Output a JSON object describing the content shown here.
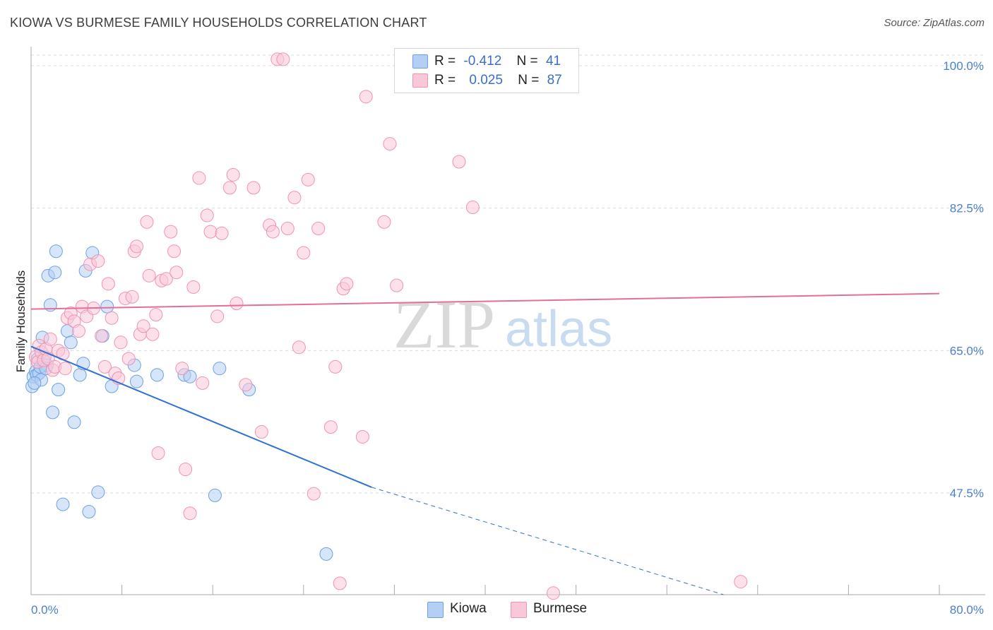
{
  "header": {
    "title": "KIOWA VS BURMESE FAMILY HOUSEHOLDS CORRELATION CHART",
    "source": "Source: ZipAtlas.com"
  },
  "legend": {
    "kiowa": {
      "r_label": "R =",
      "r_value": "-0.412",
      "n_label": "N =",
      "n_value": "41"
    },
    "burmese": {
      "r_label": "R =",
      "r_value": "0.025",
      "n_label": "N =",
      "n_value": "87"
    }
  },
  "colors": {
    "kiowa": "#6ea0e4",
    "kiowa_fill": "#b4cff3",
    "kiowa_line": "#2f72d3",
    "burmese": "#ef93b1",
    "burmese_fill": "#f9c8d8",
    "burmese_line": "#e46e96",
    "tick_text": "#4a7fd0",
    "grid": "#dcdcdc"
  },
  "chart_data": {
    "type": "scatter",
    "title": "KIOWA VS BURMESE FAMILY HOUSEHOLDS CORRELATION CHART",
    "xlabel": "",
    "ylabel": "Family Households",
    "xlim": [
      0,
      80
    ],
    "ylim": [
      35,
      102
    ],
    "x_tick_labels": [
      "0.0%",
      "80.0%"
    ],
    "y_ticks": [
      47.5,
      65.0,
      82.5,
      100.0
    ],
    "y_tick_labels": [
      "47.5%",
      "65.0%",
      "82.5%",
      "100.0%"
    ],
    "grid": true,
    "legend_position": "top-center",
    "watermark": "ZIPatlas",
    "series": [
      {
        "name": "Kiowa",
        "r": -0.412,
        "n": 41,
        "trend": {
          "x0": 0,
          "y0": 65.5,
          "x1": 30,
          "y1": 48.2,
          "dashed_to_x": 61,
          "dashed_to_y": 35
        },
        "points": [
          [
            0.1,
            60.6
          ],
          [
            0.2,
            61.8
          ],
          [
            0.4,
            62.4
          ],
          [
            0.5,
            62.0
          ],
          [
            0.6,
            64.0
          ],
          [
            0.7,
            62.2
          ],
          [
            0.9,
            61.4
          ],
          [
            1.0,
            66.6
          ],
          [
            1.2,
            64.2
          ],
          [
            1.4,
            63.2
          ],
          [
            1.5,
            74.2
          ],
          [
            1.7,
            70.6
          ],
          [
            1.9,
            57.4
          ],
          [
            2.1,
            74.6
          ],
          [
            2.2,
            77.2
          ],
          [
            2.4,
            60.2
          ],
          [
            2.8,
            46.1
          ],
          [
            3.2,
            67.4
          ],
          [
            3.5,
            66.0
          ],
          [
            3.8,
            56.2
          ],
          [
            4.3,
            62.0
          ],
          [
            4.6,
            63.4
          ],
          [
            4.8,
            74.8
          ],
          [
            5.1,
            45.2
          ],
          [
            5.4,
            77.0
          ],
          [
            5.9,
            47.6
          ],
          [
            6.3,
            66.8
          ],
          [
            6.7,
            70.4
          ],
          [
            7.1,
            60.6
          ],
          [
            9.1,
            63.2
          ],
          [
            9.3,
            61.2
          ],
          [
            11.1,
            62.0
          ],
          [
            13.5,
            62.0
          ],
          [
            14.0,
            61.8
          ],
          [
            16.2,
            47.2
          ],
          [
            16.6,
            62.8
          ],
          [
            19.2,
            60.2
          ],
          [
            26.0,
            40.0
          ],
          [
            0.3,
            61.0
          ],
          [
            0.8,
            63.0
          ],
          [
            1.3,
            62.8
          ]
        ]
      },
      {
        "name": "Burmese",
        "r": 0.025,
        "n": 87,
        "trend": {
          "x0": 0,
          "y0": 70.1,
          "x1": 80,
          "y1": 72.0
        },
        "points": [
          [
            0.4,
            64.2
          ],
          [
            0.6,
            63.6
          ],
          [
            0.7,
            65.6
          ],
          [
            0.9,
            64.8
          ],
          [
            1.1,
            63.8
          ],
          [
            1.3,
            65.2
          ],
          [
            1.5,
            64.0
          ],
          [
            1.7,
            66.4
          ],
          [
            1.9,
            62.6
          ],
          [
            2.1,
            63.0
          ],
          [
            2.4,
            65.0
          ],
          [
            2.8,
            64.6
          ],
          [
            3.0,
            62.8
          ],
          [
            3.2,
            69.0
          ],
          [
            3.5,
            69.6
          ],
          [
            3.8,
            68.6
          ],
          [
            4.2,
            67.4
          ],
          [
            4.5,
            70.4
          ],
          [
            4.9,
            69.2
          ],
          [
            5.2,
            75.6
          ],
          [
            5.5,
            70.2
          ],
          [
            5.9,
            76.0
          ],
          [
            6.2,
            66.8
          ],
          [
            6.5,
            63.0
          ],
          [
            6.8,
            73.2
          ],
          [
            7.1,
            69.0
          ],
          [
            7.4,
            62.2
          ],
          [
            7.7,
            61.6
          ],
          [
            7.9,
            66.0
          ],
          [
            8.3,
            71.4
          ],
          [
            8.6,
            64.0
          ],
          [
            8.9,
            71.6
          ],
          [
            9.1,
            77.2
          ],
          [
            9.3,
            77.8
          ],
          [
            9.6,
            67.0
          ],
          [
            9.9,
            68.0
          ],
          [
            10.2,
            80.8
          ],
          [
            10.4,
            74.2
          ],
          [
            10.7,
            67.0
          ],
          [
            11.0,
            69.4
          ],
          [
            11.2,
            52.4
          ],
          [
            11.5,
            73.6
          ],
          [
            11.9,
            73.8
          ],
          [
            12.3,
            79.6
          ],
          [
            12.6,
            77.2
          ],
          [
            12.8,
            74.6
          ],
          [
            13.3,
            62.8
          ],
          [
            13.6,
            50.4
          ],
          [
            14.0,
            45.0
          ],
          [
            14.3,
            72.8
          ],
          [
            14.8,
            86.2
          ],
          [
            15.1,
            61.0
          ],
          [
            15.5,
            81.6
          ],
          [
            15.8,
            79.6
          ],
          [
            16.4,
            69.2
          ],
          [
            16.8,
            79.4
          ],
          [
            17.5,
            85.0
          ],
          [
            17.8,
            86.6
          ],
          [
            18.1,
            70.8
          ],
          [
            18.9,
            60.8
          ],
          [
            19.6,
            85.0
          ],
          [
            20.3,
            55.0
          ],
          [
            21.0,
            80.4
          ],
          [
            21.3,
            79.6
          ],
          [
            21.7,
            100.8
          ],
          [
            22.2,
            100.8
          ],
          [
            22.6,
            80.0
          ],
          [
            23.2,
            83.8
          ],
          [
            23.6,
            65.4
          ],
          [
            24.0,
            77.0
          ],
          [
            24.4,
            86.0
          ],
          [
            24.9,
            47.4
          ],
          [
            25.3,
            80.0
          ],
          [
            26.4,
            55.6
          ],
          [
            26.8,
            63.0
          ],
          [
            27.2,
            36.4
          ],
          [
            27.5,
            72.6
          ],
          [
            27.8,
            73.2
          ],
          [
            29.2,
            54.4
          ],
          [
            29.5,
            96.2
          ],
          [
            31.1,
            80.8
          ],
          [
            31.6,
            90.4
          ],
          [
            32.2,
            73.0
          ],
          [
            37.7,
            88.2
          ],
          [
            38.9,
            82.6
          ],
          [
            46.0,
            35.2
          ],
          [
            62.5,
            36.6
          ]
        ]
      }
    ]
  },
  "bottom_legend": {
    "kiowa": "Kiowa",
    "burmese": "Burmese"
  }
}
